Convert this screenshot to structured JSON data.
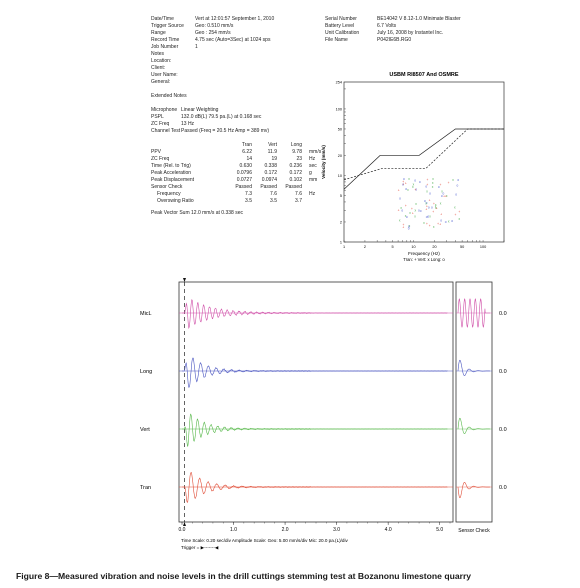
{
  "report": {
    "left_header": [
      {
        "k": "Date/Time",
        "v": "Vert at 12:01:57 September 1, 2010"
      },
      {
        "k": "Trigger Source",
        "v": "Geo: 0.510 mm/s"
      },
      {
        "k": "Range",
        "v": "Geo : 254 mm/s"
      },
      {
        "k": "Record Time",
        "v": "4.75 sec (Auto=3Sec) at 1024 sps"
      },
      {
        "k": "Job Number",
        "v": "1"
      },
      {
        "k": "Notes",
        "v": ""
      },
      {
        "k": "Location:",
        "v": ""
      },
      {
        "k": "Client:",
        "v": ""
      },
      {
        "k": "User Name:",
        "v": ""
      },
      {
        "k": "General:",
        "v": ""
      }
    ],
    "extended_notes_label": "Extended Notes",
    "mic_block": [
      {
        "k": "Microphone",
        "v": "Linear Weighting"
      },
      {
        "k": "PSPL",
        "v": "132.0 dB(L) 79.5 pa.(L) at 0.168 sec"
      },
      {
        "k": "ZC Freq",
        "v": "13 Hz"
      },
      {
        "k": "Channel Test",
        "v": "Passed (Freq = 20.5 Hz Amp = 389 mv)"
      }
    ],
    "right_header": [
      {
        "k": "Serial Number",
        "v": "BE14042 V 8.12-1.0 Minimate Blaster"
      },
      {
        "k": "Battery Level",
        "v": "6.7 Volts"
      },
      {
        "k": "Unit Calibration",
        "v": "July 16, 2008 by Instantel Inc."
      },
      {
        "k": "File Name",
        "v": "P042IE6B.RG0"
      }
    ],
    "table": {
      "headers": [
        "",
        "Tran",
        "Vert",
        "Long",
        ""
      ],
      "rows": [
        [
          "PPV",
          "6.22",
          "11.9",
          "9.78",
          "mm/s"
        ],
        [
          "ZC Freq",
          "14",
          "19",
          "23",
          "Hz"
        ],
        [
          "Time (Rel. to Trig)",
          "0.630",
          "0.338",
          "0.236",
          "sec"
        ],
        [
          "Peak Acceleration",
          "0.0796",
          "0.172",
          "0.172",
          "g"
        ],
        [
          "Peak Displacement",
          "0.0727",
          "0.0974",
          "0.102",
          "mm"
        ],
        [
          "Sensor Check",
          "Passed",
          "Passed",
          "Passed",
          ""
        ],
        [
          "Frequency",
          "7.3",
          "7.6",
          "7.6",
          "Hz"
        ],
        [
          "Overswing Ratio",
          "3.5",
          "3.5",
          "3.7",
          ""
        ]
      ]
    },
    "pvs": "Peak Vector Sum  12.0 mm/s at 0.338 sec"
  },
  "usbm_chart": {
    "title": "USBM RI8507 And OSMRE",
    "ylabel": "Velocity (mm/s)",
    "xlabel": "Frequency (Hz)",
    "y_ticks": [
      "254",
      "100",
      "50",
      "20",
      "10",
      "5",
      "2",
      "1"
    ],
    "x_ticks": [
      "1",
      "2",
      "5",
      "10",
      "20",
      "50",
      "100"
    ],
    "legend": "Tran: +  Vert: x  Long: o",
    "colors": {
      "tran": "#e34a3a",
      "vert": "#4caf50",
      "long": "#4a5bd0"
    }
  },
  "waveform": {
    "channels": [
      {
        "name": "MicL",
        "color": "#d04fa8",
        "zero": "0.0"
      },
      {
        "name": "Long",
        "color": "#4a55c0",
        "zero": "0.0"
      },
      {
        "name": "Vert",
        "color": "#57b84a",
        "zero": "0.0"
      },
      {
        "name": "Tran",
        "color": "#e04d37",
        "zero": "0.0"
      }
    ],
    "x_ticks": [
      "0.0",
      "1.0",
      "2.0",
      "3.0",
      "4.0",
      "5.0"
    ],
    "sensor_check_label": "Sensor Check",
    "scale_line": "Time Scale: 0.20 sec/div  Amplitude Scale: Geo: 5.00 mm/s/div Mic: 20.0 pa.(L)/div",
    "trigger_line": "Trigger = ▶-------◀"
  },
  "caption": "Figure 8—Measured vibration and noise levels in the drill cuttings stemming test at Bozanonu limestone quarry"
}
